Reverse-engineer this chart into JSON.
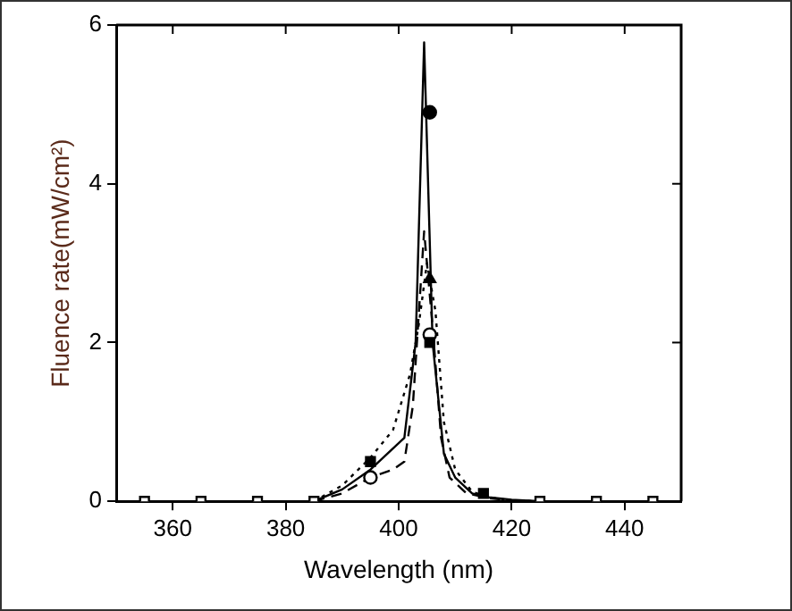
{
  "chart_data": {
    "type": "line",
    "xlabel": "Wavelength (nm)",
    "ylabel": "Fluence rate(mW/cm²)",
    "xlim": [
      350,
      450
    ],
    "xticks": [
      360,
      380,
      400,
      420,
      440
    ],
    "ylim": [
      0,
      6
    ],
    "yticks": [
      0,
      2,
      4,
      6
    ],
    "grid": false,
    "legend": false,
    "series": [
      {
        "type": "line",
        "line_style": "solid",
        "marker": "none",
        "color": "#000000",
        "x": [
          385,
          390,
          395,
          398,
          401,
          403,
          404.5,
          406,
          408,
          410,
          413,
          416,
          420,
          425
        ],
        "values": [
          0,
          0.15,
          0.4,
          0.6,
          0.8,
          2,
          5.78,
          2,
          0.6,
          0.3,
          0.1,
          0.05,
          0.02,
          0
        ]
      },
      {
        "type": "line",
        "line_style": "dashed",
        "marker": "none",
        "color": "#000000",
        "x": [
          385,
          390,
          395,
          399,
          401,
          402.5,
          404.5,
          406,
          407.5,
          409,
          412,
          416,
          420,
          425
        ],
        "values": [
          0,
          0.1,
          0.3,
          0.4,
          0.5,
          1.2,
          3.4,
          2.2,
          0.8,
          0.3,
          0.1,
          0.04,
          0.01,
          0
        ]
      },
      {
        "type": "line",
        "line_style": "dotted",
        "marker": "none",
        "color": "#000000",
        "x": [
          385,
          390,
          395,
          399,
          402,
          403.5,
          405,
          406.5,
          408,
          410,
          413,
          416,
          420,
          425
        ],
        "values": [
          0,
          0.2,
          0.55,
          0.9,
          1.6,
          2.2,
          3,
          2.4,
          1,
          0.4,
          0.12,
          0.05,
          0.01,
          0
        ]
      },
      {
        "type": "scatter",
        "marker": "circle",
        "color": "#000000",
        "x": [
          405.5
        ],
        "values": [
          4.9
        ]
      },
      {
        "type": "scatter",
        "marker": "triangle",
        "color": "#000000",
        "x": [
          405.5
        ],
        "values": [
          2.8
        ]
      },
      {
        "type": "scatter",
        "marker": "square",
        "color": "#000000",
        "x": [
          395,
          405.5,
          415
        ],
        "values": [
          0.5,
          2.0,
          0.1
        ]
      },
      {
        "type": "scatter",
        "marker": "circle",
        "color": "#ffffff",
        "x": [
          395,
          405.5
        ],
        "values": [
          0.3,
          2.1
        ]
      },
      {
        "type": "scatter",
        "marker": "square",
        "color": "#ffffff",
        "x": [
          355,
          365,
          375,
          385,
          425,
          435,
          445
        ],
        "values": [
          0,
          0,
          0,
          0,
          0,
          0,
          0
        ]
      }
    ]
  }
}
